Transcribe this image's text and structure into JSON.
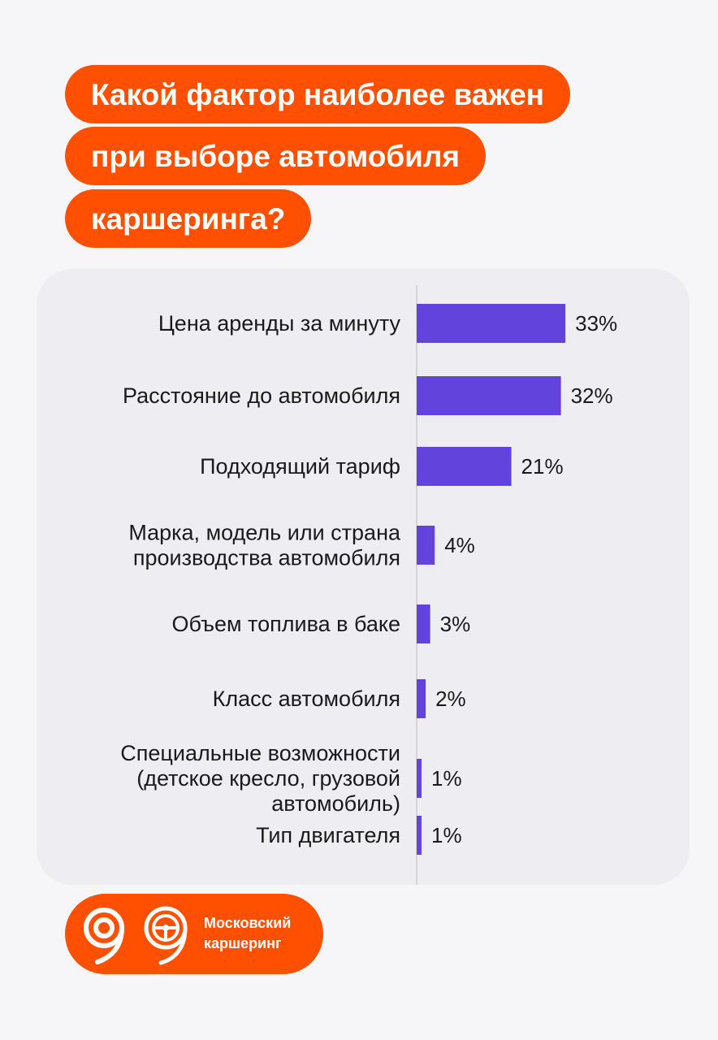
{
  "title_lines": [
    "Какой фактор наиболее важен",
    "при выборе автомобиля",
    "каршеринга?"
  ],
  "colors": {
    "accent": "#ff4f00",
    "bar": "#6244dc",
    "card": "#eeeef2",
    "background": "#f6f6f8"
  },
  "chart_data": {
    "type": "bar",
    "orientation": "horizontal",
    "categories": [
      [
        "Цена аренды за минуту"
      ],
      [
        "Расстояние до автомобиля"
      ],
      [
        "Подходящий тариф"
      ],
      [
        "Марка, модель или страна",
        "производства автомобиля"
      ],
      [
        "Объем топлива в баке"
      ],
      [
        "Класс автомобиля"
      ],
      [
        "Специальные возможности",
        "(детское кресло, грузовой",
        "автомобиль)"
      ],
      [
        "Тип двигателя"
      ]
    ],
    "values": [
      33,
      32,
      21,
      4,
      3,
      2,
      1,
      1
    ],
    "value_labels": [
      "33%",
      "32%",
      "21%",
      "4%",
      "3%",
      "2%",
      "1%",
      "1%"
    ],
    "unit": "%",
    "grid": false,
    "legend": "none"
  },
  "brand": {
    "icons": [
      "logo-9-icon",
      "steering-wheel-icon"
    ],
    "name_lines": [
      "Московский",
      "каршеринг"
    ]
  }
}
